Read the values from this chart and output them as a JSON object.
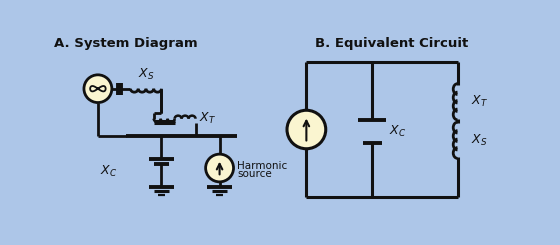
{
  "bg_color": "#adc6e8",
  "line_color": "#111111",
  "fill_color": "#faf5d0",
  "title_a": "A. System Diagram",
  "title_b": "B. Equivalent Circuit",
  "title_fontsize": 9.5,
  "label_fontsize": 9,
  "sub_fontsize": 7.5
}
